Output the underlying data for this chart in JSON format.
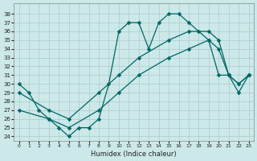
{
  "bg_color": "#cce8e8",
  "line_color": "#006666",
  "grid_color": "#aacccc",
  "xlabel": "Humidex (Indice chaleur)",
  "xlim": [
    -0.5,
    23.5
  ],
  "ylim": [
    23.5,
    39.2
  ],
  "xticks": [
    0,
    1,
    2,
    3,
    4,
    5,
    6,
    7,
    8,
    9,
    10,
    11,
    12,
    13,
    14,
    15,
    16,
    17,
    18,
    19,
    20,
    21,
    22,
    23
  ],
  "yticks": [
    24,
    25,
    26,
    27,
    28,
    29,
    30,
    31,
    32,
    33,
    34,
    35,
    36,
    37,
    38
  ],
  "curve1_x": [
    0,
    1,
    2,
    3,
    4,
    5,
    6,
    7,
    8,
    9,
    10,
    11,
    12,
    13,
    14,
    15,
    16,
    17,
    18,
    19,
    20,
    21,
    22,
    23
  ],
  "curve1_y": [
    30,
    29,
    27,
    26,
    25,
    24,
    25,
    25,
    26,
    30,
    36,
    37,
    37,
    34,
    37,
    38,
    38,
    37,
    36,
    35,
    31,
    31,
    29,
    31
  ],
  "curve2_x": [
    0,
    3,
    5,
    8,
    10,
    12,
    15,
    17,
    19,
    20,
    21,
    22,
    23
  ],
  "curve2_y": [
    29,
    27,
    26,
    29,
    31,
    33,
    35,
    36,
    36,
    35,
    31,
    30,
    31
  ],
  "curve3_x": [
    0,
    3,
    5,
    8,
    10,
    12,
    15,
    17,
    19,
    20,
    21,
    22,
    23
  ],
  "curve3_y": [
    27,
    26,
    25,
    27,
    29,
    31,
    33,
    34,
    35,
    34,
    31,
    30,
    31
  ]
}
